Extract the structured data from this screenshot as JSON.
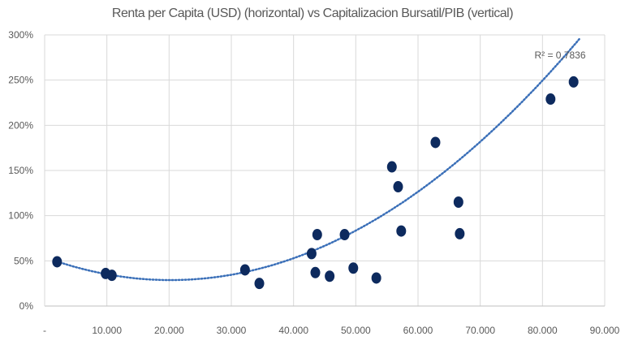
{
  "chart_data": {
    "type": "scatter",
    "title": "Renta per Capita (USD) (horizontal) vs Capitalizacion Bursatil/PIB (vertical)",
    "xlabel": "",
    "ylabel": "",
    "xlim": [
      0,
      90000
    ],
    "ylim": [
      0,
      300
    ],
    "x_ticks": [
      0,
      10000,
      20000,
      30000,
      40000,
      50000,
      60000,
      70000,
      80000,
      90000
    ],
    "x_tick_labels": [
      "-",
      "10.000",
      "20.000",
      "30.000",
      "40.000",
      "50.000",
      "60.000",
      "70.000",
      "80.000",
      "90.000"
    ],
    "y_ticks": [
      0,
      50,
      100,
      150,
      200,
      250,
      300
    ],
    "y_tick_labels": [
      "0%",
      "50%",
      "100%",
      "150%",
      "200%",
      "250%",
      "300%"
    ],
    "grid": true,
    "legend": "none",
    "marker_color": "#0d2a5e",
    "trendline_color": "#3a6fb8",
    "trendline": {
      "type": "polynomial",
      "order": 2,
      "r_squared_label": "R² = 0,7836",
      "coefficients": [
        54,
        -0.0025,
        6.18e-08
      ]
    },
    "series": [
      {
        "points": [
          [
            2000,
            49
          ],
          [
            9800,
            36
          ],
          [
            10800,
            34
          ],
          [
            32200,
            40
          ],
          [
            34500,
            25
          ],
          [
            42900,
            58
          ],
          [
            43500,
            37
          ],
          [
            43800,
            79
          ],
          [
            45800,
            33
          ],
          [
            48200,
            79
          ],
          [
            49600,
            42
          ],
          [
            53300,
            31
          ],
          [
            55800,
            154
          ],
          [
            56800,
            132
          ],
          [
            57300,
            83
          ],
          [
            62800,
            181
          ],
          [
            66500,
            115
          ],
          [
            66700,
            80
          ],
          [
            81300,
            229
          ],
          [
            85000,
            248
          ]
        ]
      }
    ]
  }
}
